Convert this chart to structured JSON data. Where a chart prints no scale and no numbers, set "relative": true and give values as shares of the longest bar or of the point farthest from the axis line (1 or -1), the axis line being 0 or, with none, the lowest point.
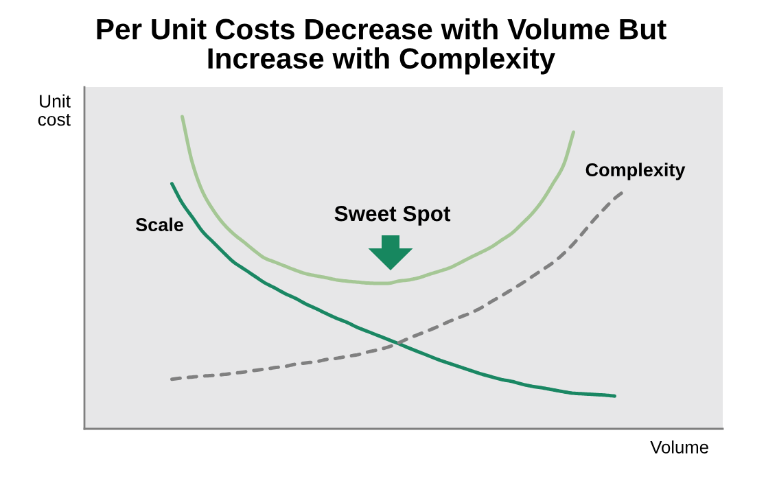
{
  "chart_data": {
    "type": "line",
    "title": "Per Unit Costs Decrease with Volume But\nIncrease with Complexity",
    "xlabel": "Volume",
    "ylabel": "Unit\ncost",
    "relative": true,
    "categories": [
      null,
      null,
      null,
      null,
      null,
      null,
      null,
      null,
      null,
      null,
      null,
      null,
      null,
      null,
      null,
      null,
      null,
      null,
      null,
      null,
      null,
      null,
      null,
      null,
      null,
      null,
      null,
      null,
      null,
      null,
      null,
      null,
      null,
      null,
      null,
      null,
      null,
      null,
      null,
      null,
      null,
      null,
      null,
      null,
      null,
      null,
      null,
      null,
      null,
      null,
      null,
      null,
      null,
      null,
      null,
      null,
      null,
      null,
      null,
      null,
      null,
      null
    ],
    "series": [
      {
        "name": "Scale",
        "color": "#1a8763",
        "line_style": "solid",
        "values": [
          null,
          null,
          null,
          null,
          null,
          null,
          null,
          null,
          0.785,
          0.723,
          0.677,
          0.631,
          0.598,
          0.565,
          0.534,
          0.512,
          0.49,
          0.468,
          0.451,
          0.433,
          0.418,
          0.4,
          0.385,
          0.369,
          0.354,
          0.341,
          0.325,
          0.312,
          0.299,
          0.286,
          0.273,
          0.259,
          0.246,
          0.233,
          0.22,
          0.209,
          0.198,
          0.187,
          0.176,
          0.167,
          0.158,
          0.152,
          0.143,
          0.136,
          0.131,
          0.125,
          0.119,
          0.114,
          0.112,
          0.11,
          0.108,
          0.105,
          null,
          null,
          null,
          null,
          null,
          null,
          null,
          null,
          null,
          null
        ]
      },
      {
        "name": "Complexity",
        "color": "#808080",
        "line_style": "dashed",
        "values": [
          null,
          null,
          null,
          null,
          null,
          null,
          null,
          null,
          0.159,
          0.163,
          0.166,
          0.169,
          0.171,
          0.174,
          0.178,
          0.182,
          0.187,
          0.191,
          0.196,
          0.2,
          0.207,
          0.211,
          0.215,
          0.222,
          0.226,
          0.232,
          0.237,
          0.246,
          0.253,
          0.262,
          0.275,
          0.29,
          0.303,
          0.316,
          0.33,
          0.345,
          0.358,
          0.371,
          0.387,
          0.407,
          0.426,
          0.446,
          0.466,
          0.488,
          0.51,
          0.532,
          0.56,
          0.593,
          0.631,
          0.67,
          0.705,
          0.738,
          0.763,
          null,
          null,
          null,
          null,
          null,
          null,
          null,
          null,
          null
        ]
      },
      {
        "color": "#a5c795",
        "line_style": "solid",
        "values": [
          null,
          null,
          null,
          null,
          null,
          null,
          null,
          null,
          null,
          1.0,
          0.85,
          0.758,
          0.701,
          0.657,
          0.624,
          0.598,
          0.571,
          0.547,
          0.534,
          0.521,
          0.508,
          0.497,
          0.49,
          0.484,
          0.477,
          0.473,
          0.47,
          0.467,
          0.466,
          0.466,
          0.473,
          0.477,
          0.484,
          0.495,
          0.505,
          0.516,
          0.532,
          0.549,
          0.565,
          0.582,
          0.604,
          0.626,
          0.657,
          0.69,
          0.732,
          0.785,
          0.842,
          0.95,
          null,
          null,
          null,
          null,
          null,
          null,
          null,
          null,
          null,
          null,
          null,
          null,
          null,
          null
        ]
      }
    ],
    "annotations": [
      "Sweet Spot"
    ]
  }
}
